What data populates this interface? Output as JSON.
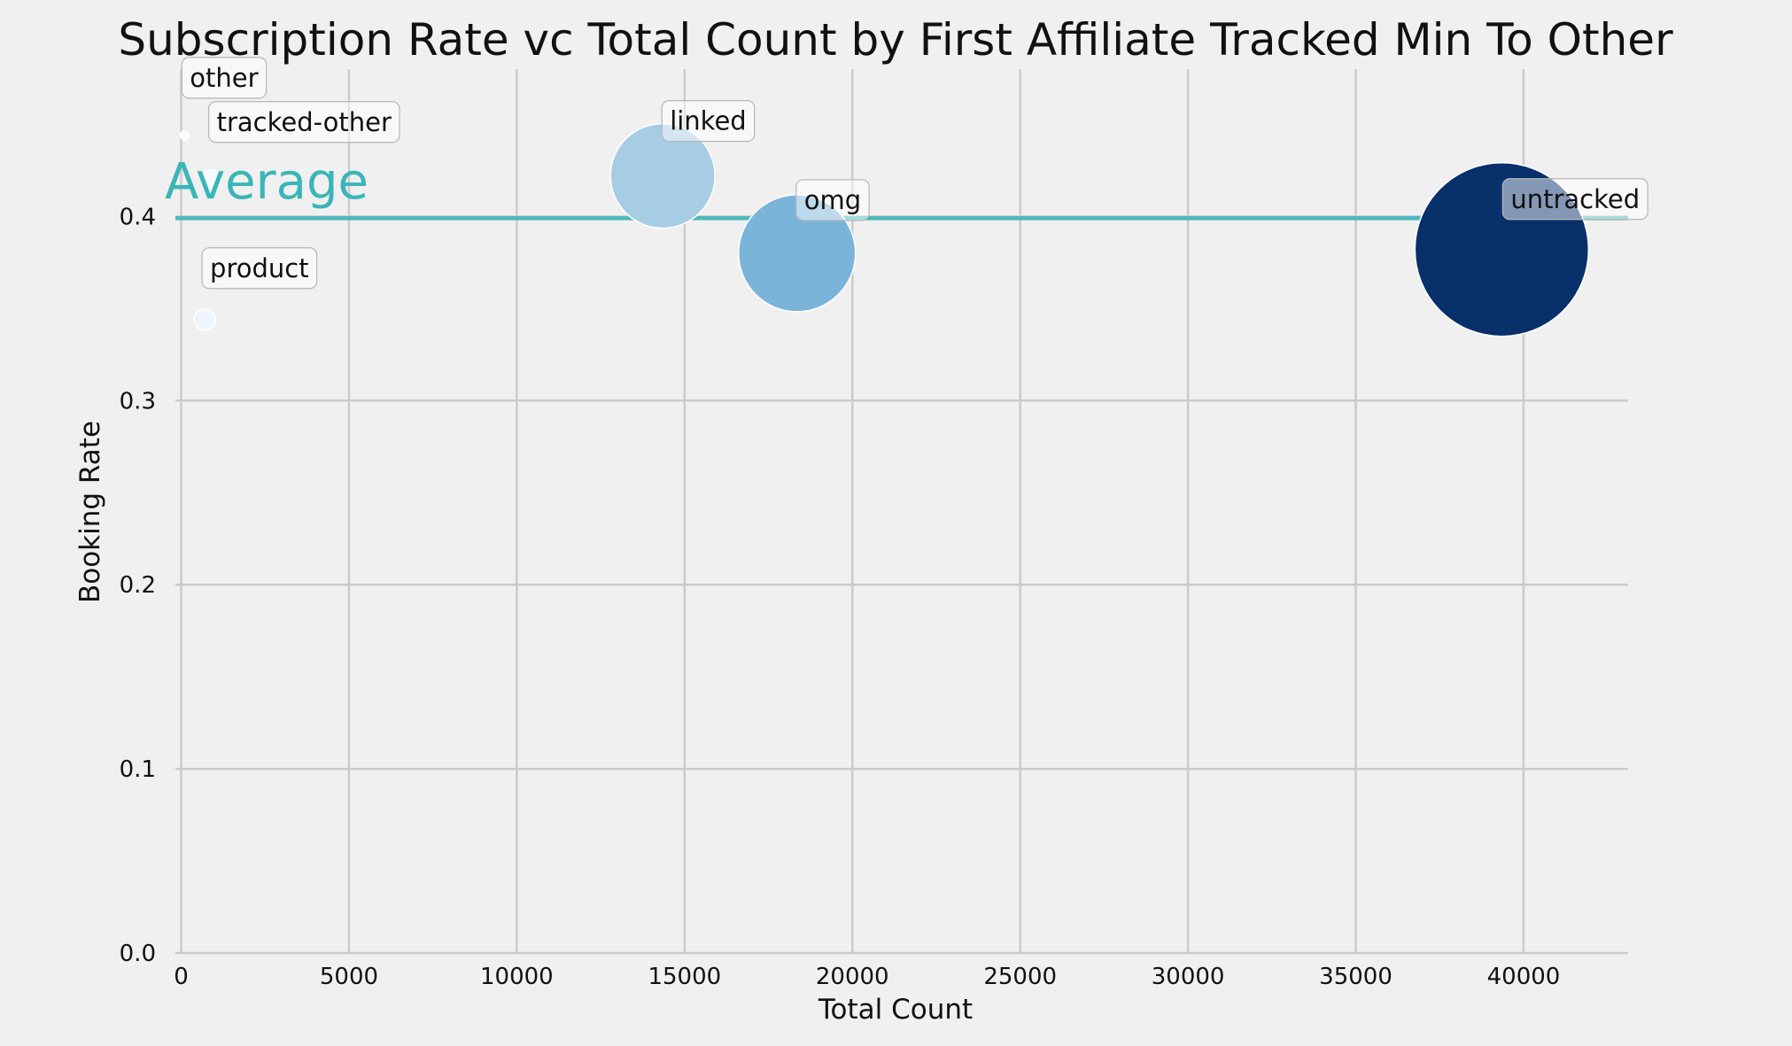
{
  "chart_data": {
    "type": "scatter",
    "subtype": "bubble",
    "title": "Subscription Rate vc Total Count by First Affiliate Tracked Min To Other",
    "xlabel": "Total Count",
    "ylabel": "Booking Rate",
    "xlim": [
      -700,
      43300
    ],
    "ylim": [
      0.0,
      0.48
    ],
    "xticks": [
      0,
      5000,
      10000,
      15000,
      20000,
      25000,
      30000,
      35000,
      40000
    ],
    "xtick_labels": [
      "0",
      "5000",
      "10000",
      "15000",
      "20000",
      "25000",
      "30000",
      "35000",
      "40000"
    ],
    "yticks": [
      0.0,
      0.1,
      0.2,
      0.3,
      0.4
    ],
    "ytick_labels": [
      "0.0",
      "0.1",
      "0.2",
      "0.3",
      "0.4"
    ],
    "grid": true,
    "average": {
      "label": "Average",
      "value": 0.399,
      "color": "#3ab5b8"
    },
    "points": [
      {
        "label": "other",
        "x": 100,
        "y": 0.444,
        "color": "#f7fbff"
      },
      {
        "label": "tracked-other",
        "x": 900,
        "y": 0.42,
        "color": "#f7fbff"
      },
      {
        "label": "product",
        "x": 700,
        "y": 0.344,
        "color": "#eef5fc"
      },
      {
        "label": "linked",
        "x": 14350,
        "y": 0.422,
        "color": "#a6cde3"
      },
      {
        "label": "omg",
        "x": 18350,
        "y": 0.38,
        "color": "#7ab5d9"
      },
      {
        "label": "untracked",
        "x": 39350,
        "y": 0.382,
        "color": "#08306b"
      }
    ]
  }
}
